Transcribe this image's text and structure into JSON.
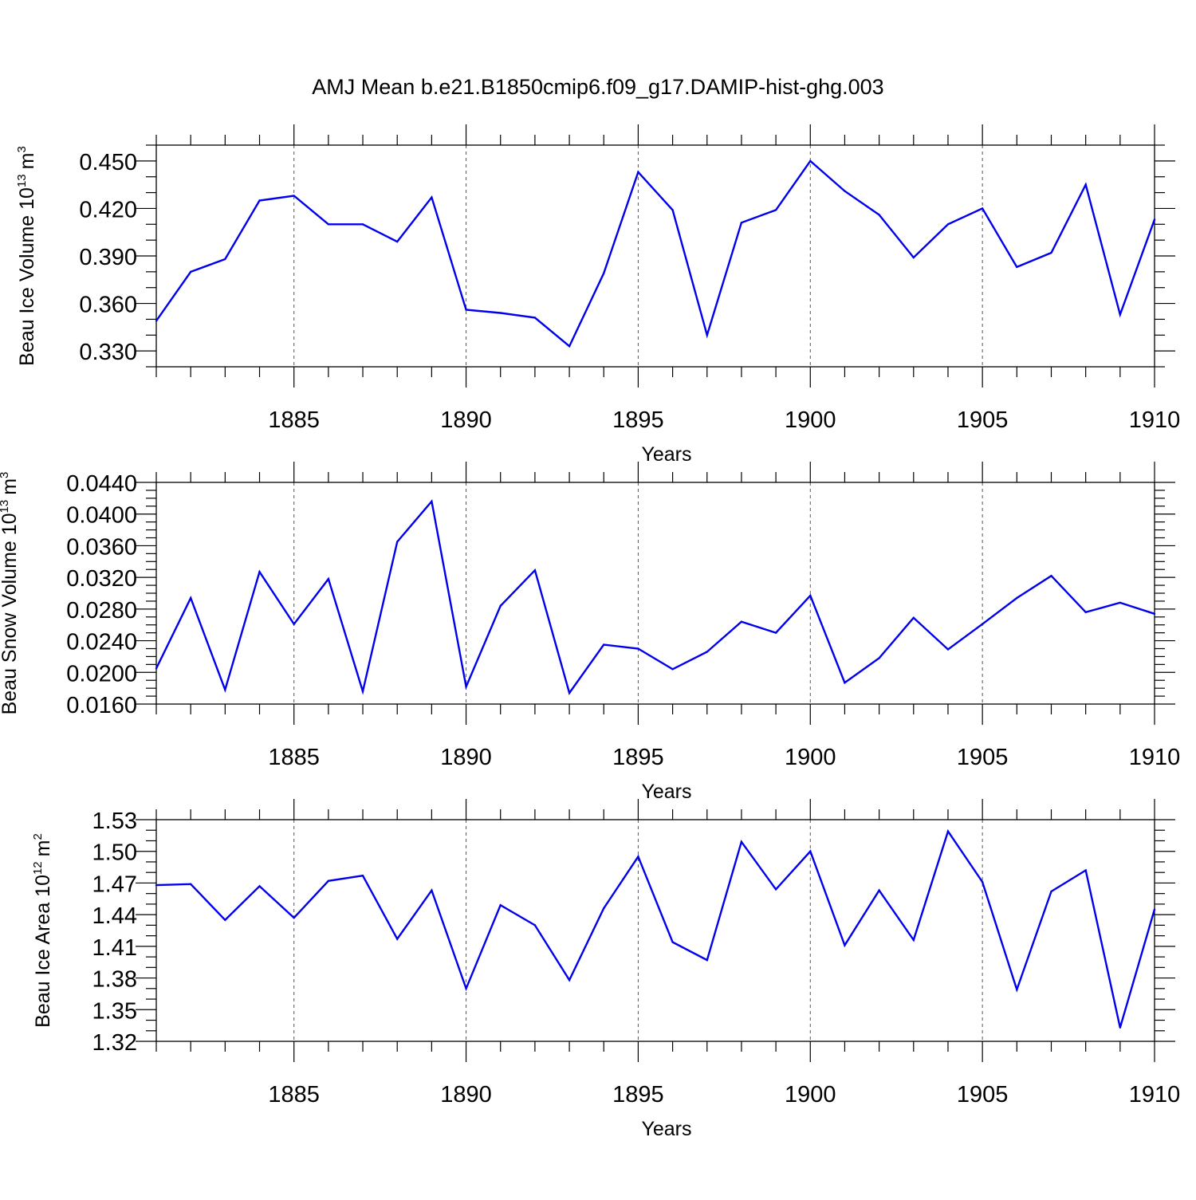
{
  "title": "AMJ Mean b.e21.B1850cmip6.f09_g17.DAMIP-hist-ghg.003",
  "colors": {
    "line": "#0000ee",
    "axis": "#000000",
    "grid": "#555555"
  },
  "chart_data": [
    {
      "type": "line",
      "xlabel": "Years",
      "ylabel": "Beau Ice Volume 10",
      "ylabel_exp": "13",
      "ylabel_unit": "m",
      "ylabel_unit_exp": "3",
      "xlim": [
        1881,
        1910
      ],
      "ylim": [
        0.32,
        0.46
      ],
      "x_ticks": [
        1885,
        1890,
        1895,
        1900,
        1905,
        1910
      ],
      "x_tick_labels": [
        "1885",
        "1890",
        "1895",
        "1900",
        "1905",
        "1910"
      ],
      "y_ticks": [
        0.33,
        0.36,
        0.39,
        0.42,
        0.45
      ],
      "y_tick_labels": [
        "0.330",
        "0.360",
        "0.390",
        "0.420",
        "0.450"
      ],
      "y_minor_step": 0.01,
      "grid": "x-dashed",
      "x": [
        1881,
        1882,
        1883,
        1884,
        1885,
        1886,
        1887,
        1888,
        1889,
        1890,
        1891,
        1892,
        1893,
        1894,
        1895,
        1896,
        1897,
        1898,
        1899,
        1900,
        1901,
        1902,
        1903,
        1904,
        1905,
        1906,
        1907,
        1908,
        1909,
        1910
      ],
      "series": [
        {
          "values": [
            0.349,
            0.38,
            0.388,
            0.425,
            0.428,
            0.41,
            0.41,
            0.399,
            0.427,
            0.356,
            0.354,
            0.351,
            0.333,
            0.379,
            0.443,
            0.419,
            0.34,
            0.411,
            0.419,
            0.45,
            0.431,
            0.416,
            0.389,
            0.41,
            0.42,
            0.383,
            0.392,
            0.435,
            0.353,
            0.413
          ]
        }
      ]
    },
    {
      "type": "line",
      "xlabel": "Years",
      "ylabel": "Beau Snow Volume 10",
      "ylabel_exp": "13",
      "ylabel_unit": "m",
      "ylabel_unit_exp": "3",
      "xlim": [
        1881,
        1910
      ],
      "ylim": [
        0.016,
        0.044
      ],
      "x_ticks": [
        1885,
        1890,
        1895,
        1900,
        1905,
        1910
      ],
      "x_tick_labels": [
        "1885",
        "1890",
        "1895",
        "1900",
        "1905",
        "1910"
      ],
      "y_ticks": [
        0.016,
        0.02,
        0.024,
        0.028,
        0.032,
        0.036,
        0.04,
        0.044
      ],
      "y_tick_labels": [
        "0.0160",
        "0.0200",
        "0.0240",
        "0.0280",
        "0.0320",
        "0.0360",
        "0.0400",
        "0.0440"
      ],
      "y_minor_step": 0.001,
      "grid": "x-dashed",
      "x": [
        1881,
        1882,
        1883,
        1884,
        1885,
        1886,
        1887,
        1888,
        1889,
        1890,
        1891,
        1892,
        1893,
        1894,
        1895,
        1896,
        1897,
        1898,
        1899,
        1900,
        1901,
        1902,
        1903,
        1904,
        1905,
        1906,
        1907,
        1908,
        1909,
        1910
      ],
      "series": [
        {
          "values": [
            0.0205,
            0.0294,
            0.0178,
            0.0327,
            0.0261,
            0.0318,
            0.0176,
            0.0365,
            0.0416,
            0.0182,
            0.0284,
            0.0329,
            0.0174,
            0.0235,
            0.023,
            0.0204,
            0.0226,
            0.0264,
            0.025,
            0.0297,
            0.0187,
            0.0218,
            0.0269,
            0.0229,
            0.0261,
            0.0294,
            0.0322,
            0.0276,
            0.0288,
            0.0274
          ]
        }
      ]
    },
    {
      "type": "line",
      "xlabel": "Years",
      "ylabel": "Beau Ice Area 10",
      "ylabel_exp": "12",
      "ylabel_unit": "m",
      "ylabel_unit_exp": "2",
      "xlim": [
        1881,
        1910
      ],
      "ylim": [
        1.32,
        1.53
      ],
      "x_ticks": [
        1885,
        1890,
        1895,
        1900,
        1905,
        1910
      ],
      "x_tick_labels": [
        "1885",
        "1890",
        "1895",
        "1900",
        "1905",
        "1910"
      ],
      "y_ticks": [
        1.32,
        1.35,
        1.38,
        1.41,
        1.44,
        1.47,
        1.5,
        1.53
      ],
      "y_tick_labels": [
        "1.32",
        "1.35",
        "1.38",
        "1.41",
        "1.44",
        "1.47",
        "1.50",
        "1.53"
      ],
      "y_minor_step": 0.01,
      "grid": "x-dashed",
      "x": [
        1881,
        1882,
        1883,
        1884,
        1885,
        1886,
        1887,
        1888,
        1889,
        1890,
        1891,
        1892,
        1893,
        1894,
        1895,
        1896,
        1897,
        1898,
        1899,
        1900,
        1901,
        1902,
        1903,
        1904,
        1905,
        1906,
        1907,
        1908,
        1909,
        1910
      ],
      "series": [
        {
          "values": [
            1.468,
            1.469,
            1.435,
            1.467,
            1.437,
            1.472,
            1.477,
            1.417,
            1.463,
            1.37,
            1.449,
            1.43,
            1.378,
            1.446,
            1.495,
            1.414,
            1.397,
            1.509,
            1.464,
            1.5,
            1.411,
            1.463,
            1.416,
            1.519,
            1.471,
            1.369,
            1.462,
            1.482,
            1.333,
            1.445
          ]
        }
      ]
    }
  ]
}
